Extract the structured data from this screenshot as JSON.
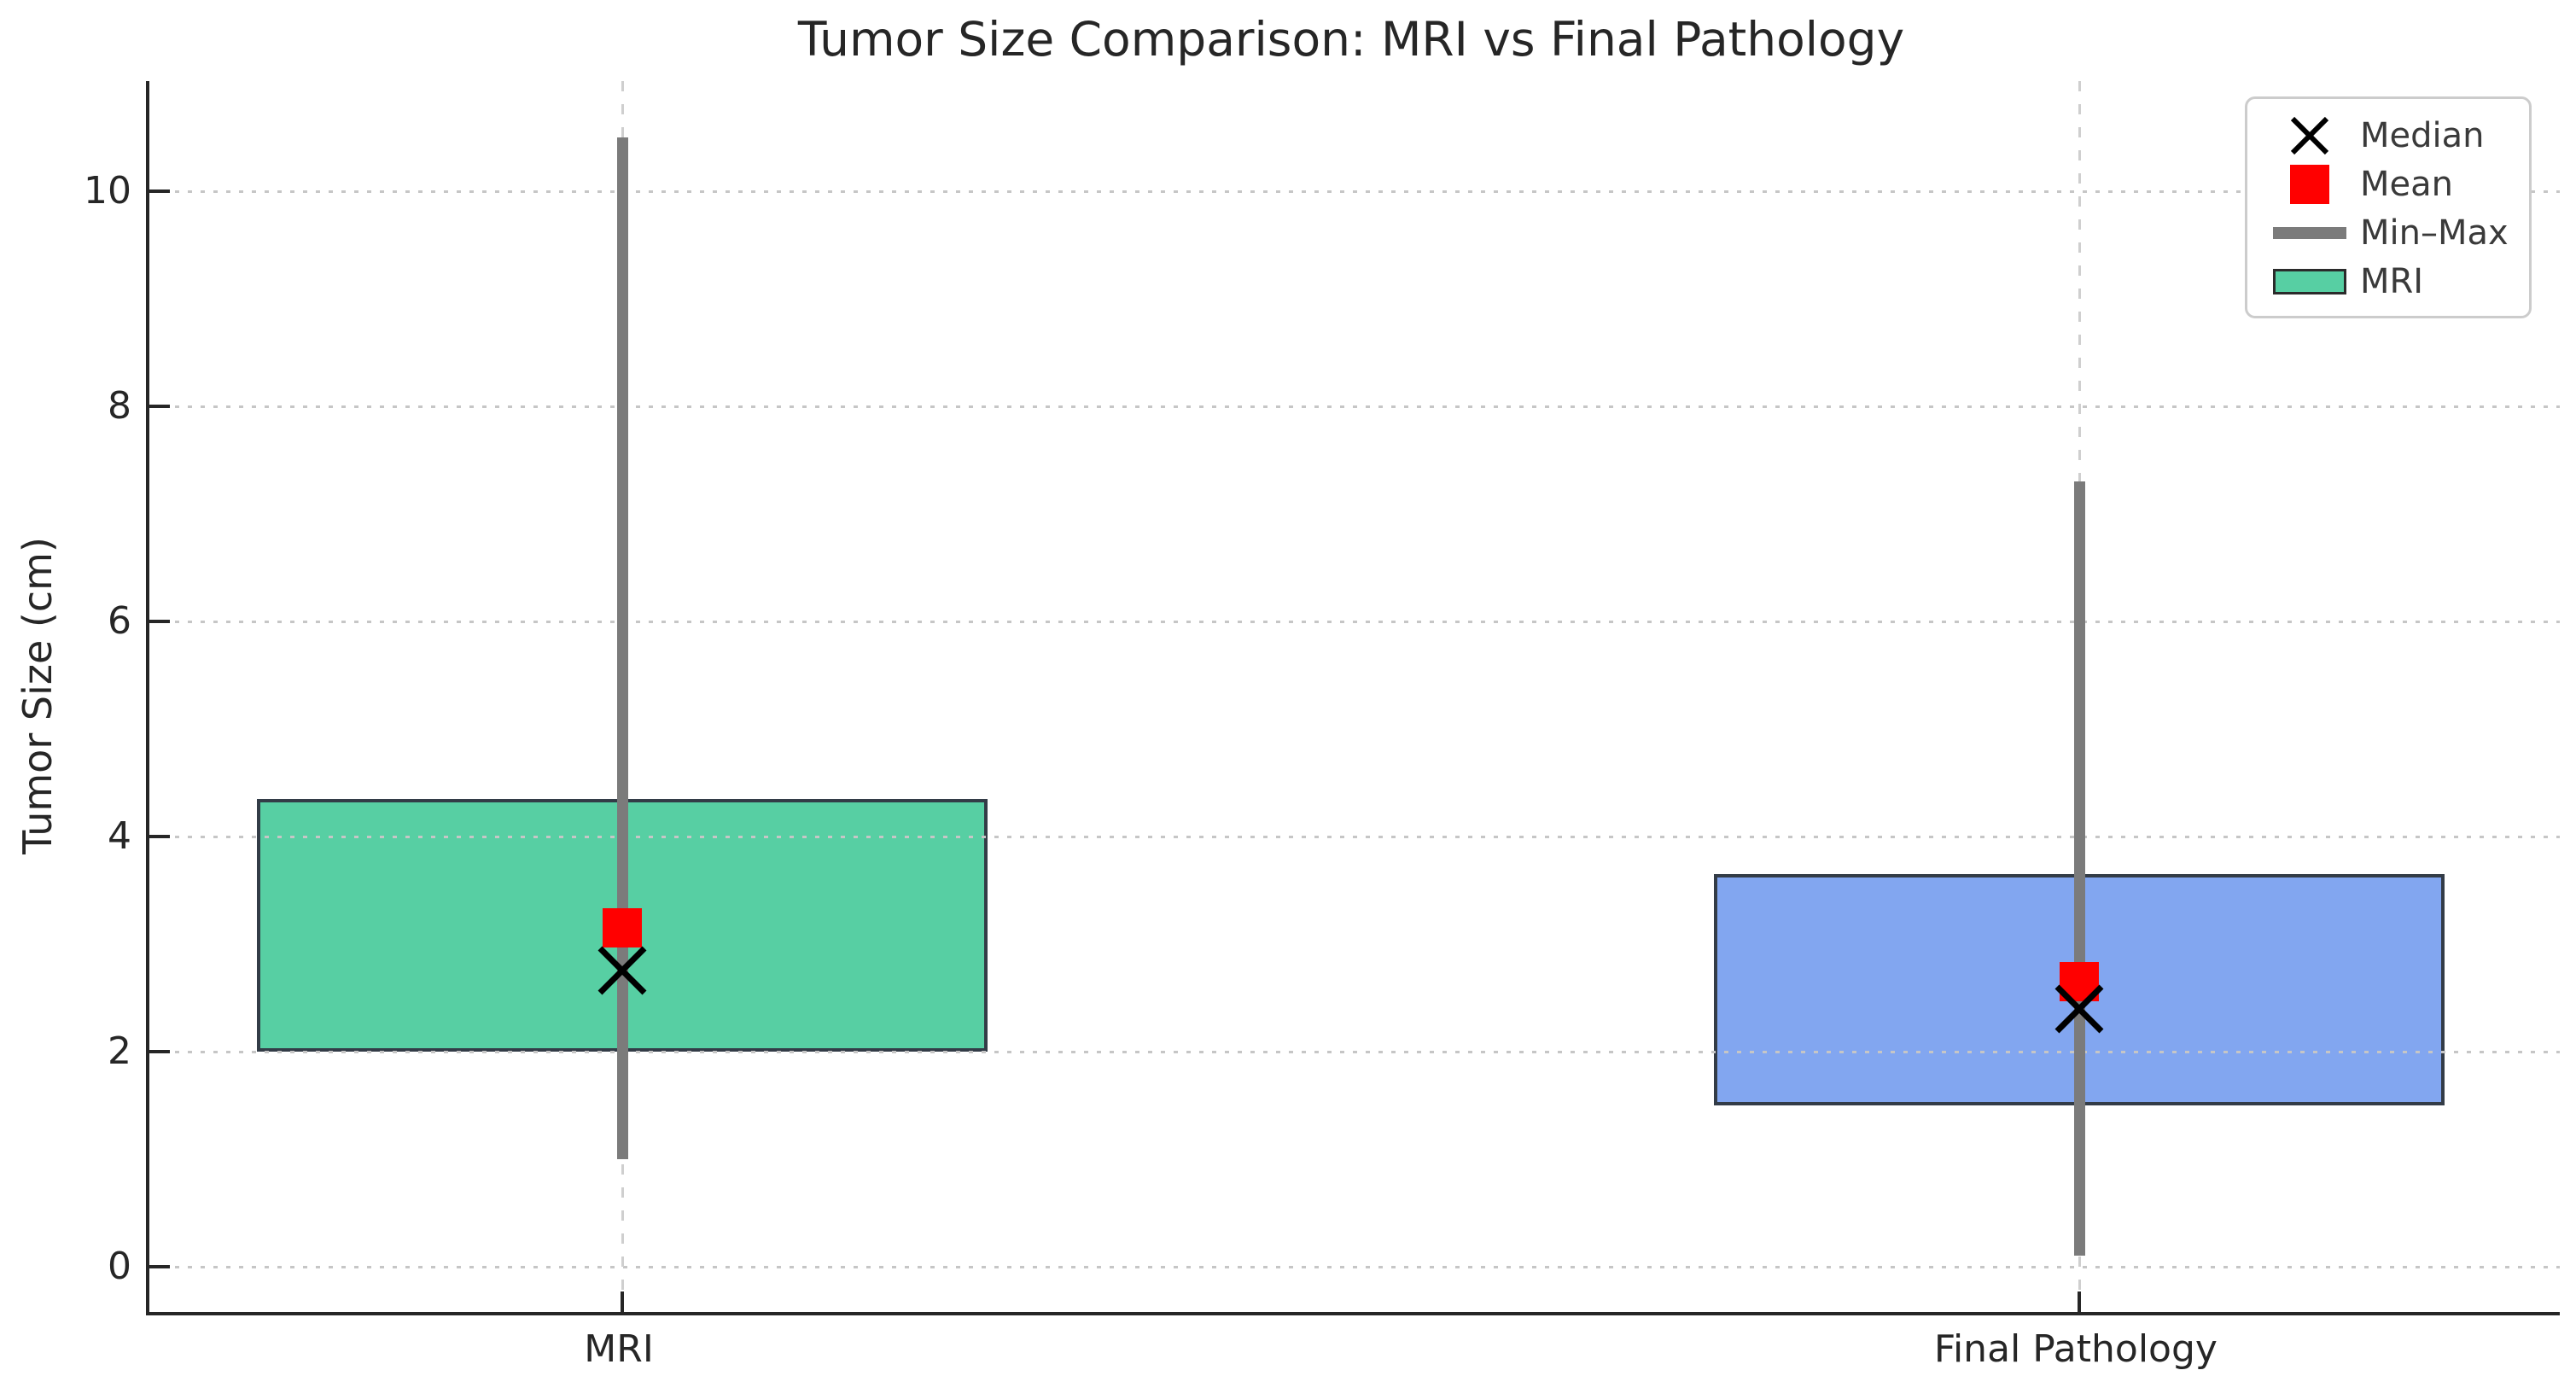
{
  "chart_data": {
    "type": "box",
    "title": "Tumor Size Comparison: MRI vs Final Pathology",
    "ylabel": "Tumor Size (cm)",
    "xlabel": "",
    "categories": [
      "MRI",
      "Final Pathology"
    ],
    "yticks": [
      0,
      2,
      4,
      6,
      8,
      10
    ],
    "ylim": [
      -0.42,
      11.02
    ],
    "grid": true,
    "legend_position": "upper right",
    "series": [
      {
        "name": "MRI",
        "box_color": "#57cfa3",
        "min": 1.0,
        "q1": 2.0,
        "median": 2.75,
        "mean": 3.15,
        "q3": 4.35,
        "max": 10.5
      },
      {
        "name": "Final Pathology",
        "box_color": "#82a6f0",
        "min": 0.1,
        "q1": 1.5,
        "median": 2.4,
        "mean": 2.65,
        "q3": 3.65,
        "max": 7.3
      }
    ],
    "legend": [
      {
        "label": "Median",
        "marker": "x-marker",
        "color": "#000000"
      },
      {
        "label": "Mean",
        "marker": "square-marker",
        "color": "#ff0000"
      },
      {
        "label": "Min–Max",
        "marker": "thick-line",
        "color": "#7b7b7b"
      },
      {
        "label": "MRI",
        "marker": "box-patch",
        "color": "#57cfa3"
      }
    ],
    "colors": {
      "mean_marker": "#ff0000",
      "median_marker": "#000000",
      "whisker": "#7b7b7b",
      "grid": "#c6c6c6",
      "axis": "#262626",
      "legend_border": "#cccccc"
    }
  }
}
